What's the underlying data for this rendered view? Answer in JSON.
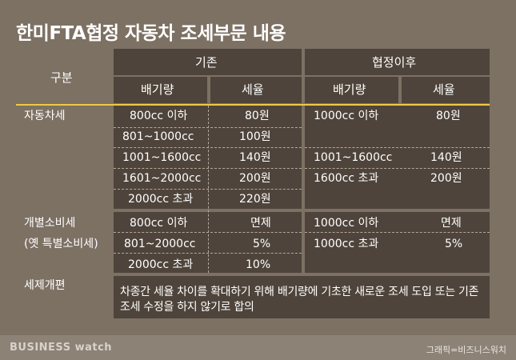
{
  "title": "한미FTA협정 자동차 조세부문 내용",
  "header": {
    "category": "구분",
    "existing": "기존",
    "after": "협정이후",
    "displacement": "배기량",
    "tax_rate": "세율"
  },
  "rows": {
    "car_tax": {
      "label": "자동차세",
      "existing": [
        {
          "displacement": "800cc 이하",
          "rate": "80원"
        },
        {
          "displacement": "801~1000cc",
          "rate": "100원"
        },
        {
          "displacement": "1001~1600cc",
          "rate": "140원"
        },
        {
          "displacement": "1601~2000cc",
          "rate": "200원"
        },
        {
          "displacement": "2000cc 초과",
          "rate": "220원"
        }
      ],
      "after": [
        {
          "displacement": "1000cc 이하",
          "rate": "80원"
        },
        {
          "displacement": "1001~1600cc",
          "rate": "140원"
        },
        {
          "displacement": "1600cc 초과",
          "rate": "200원"
        }
      ]
    },
    "individual_consumption_tax": {
      "label": "개별소비세",
      "sublabel": "(옛 특별소비세)",
      "existing": [
        {
          "displacement": "800cc 이하",
          "rate": "면제"
        },
        {
          "displacement": "801~2000cc",
          "rate": "5%"
        },
        {
          "displacement": "2000cc 초과",
          "rate": "10%"
        }
      ],
      "after": [
        {
          "displacement": "1000cc 이하",
          "rate": "면제"
        },
        {
          "displacement": "1000cc 초과",
          "rate": "5%"
        }
      ]
    },
    "tax_reform": {
      "label": "세제개편",
      "note": "차종간 세율 차이를 확대하기 위해 배기량에 기초한 새로운 조세 도입 또는 기존 조세 수정을 하지 않기로 합의"
    }
  },
  "footer": {
    "brand": "BUSINESS watch",
    "credit": "그래픽=비즈니스워치"
  }
}
